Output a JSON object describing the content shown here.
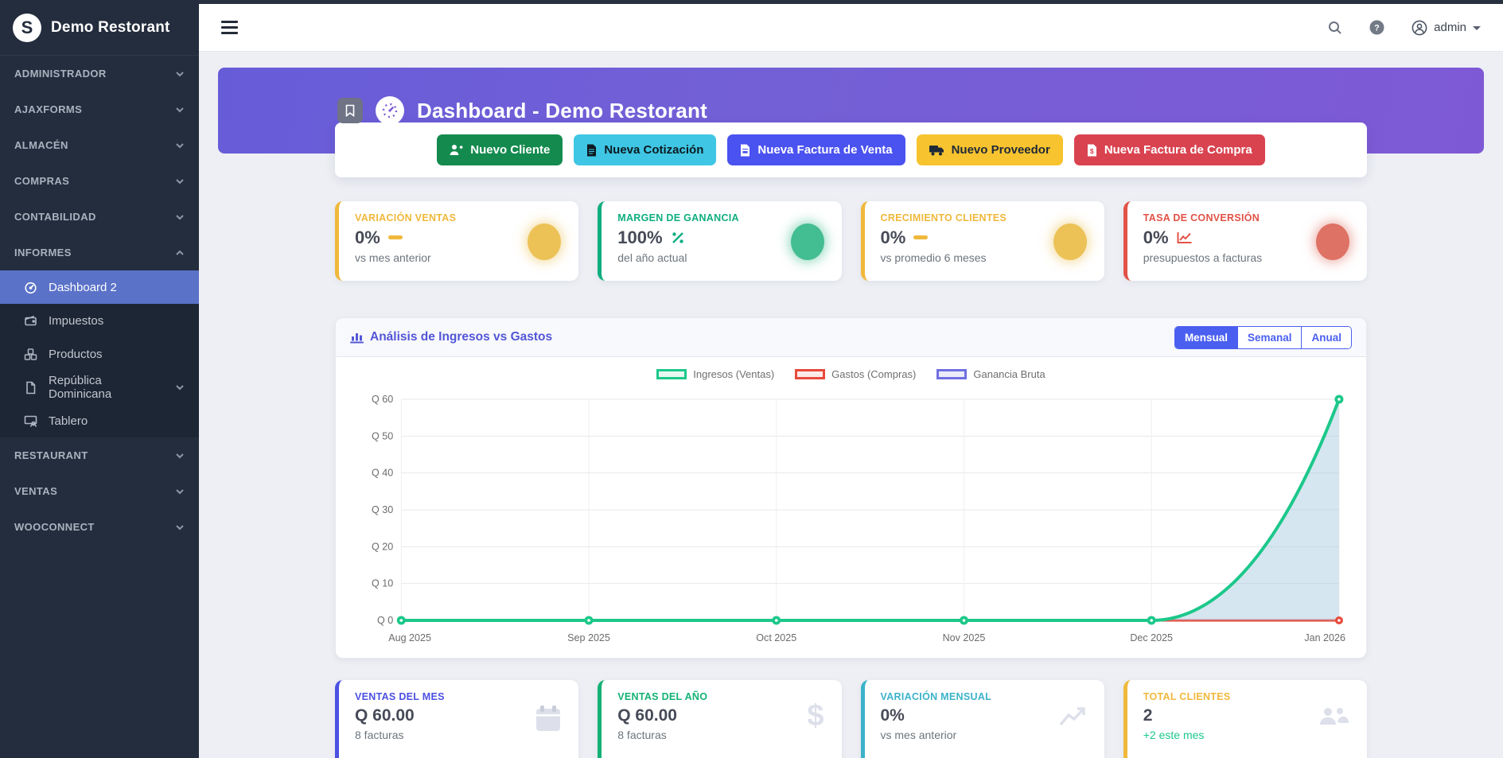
{
  "brand": {
    "title": "Demo Restorant",
    "logo_letter": "S"
  },
  "navbar": {
    "username": "admin"
  },
  "sidebar": {
    "sections": [
      {
        "label": "ADMINISTRADOR"
      },
      {
        "label": "AJAXFORMS"
      },
      {
        "label": "ALMACÉN"
      },
      {
        "label": "COMPRAS"
      },
      {
        "label": "CONTABILIDAD"
      },
      {
        "label": "INFORMES",
        "expanded": true
      },
      {
        "label": "RESTAURANT"
      },
      {
        "label": "VENTAS"
      },
      {
        "label": "WOOCONNECT"
      }
    ],
    "informes_items": [
      {
        "label": "Dashboard 2",
        "icon": "tachometer-icon",
        "active": true
      },
      {
        "label": "Impuestos",
        "icon": "wallet-icon"
      },
      {
        "label": "Productos",
        "icon": "cubes-icon"
      },
      {
        "label": "República Dominicana",
        "icon": "file-icon",
        "has_children": true
      },
      {
        "label": "Tablero",
        "icon": "board-user-icon"
      }
    ]
  },
  "hero": {
    "title": "Dashboard - Demo Restorant"
  },
  "actions": [
    {
      "label": "Nuevo Cliente",
      "bg": "#148a4e",
      "fg": "#ffffff",
      "icon": "user-plus-icon"
    },
    {
      "label": "Nueva Cotización",
      "bg": "#3fc6e4",
      "fg": "#0c1a20",
      "icon": "file-icon"
    },
    {
      "label": "Nueva Factura de Venta",
      "bg": "#4a52ef",
      "fg": "#ffffff",
      "icon": "file-invoice-icon"
    },
    {
      "label": "Nuevo Proveedor",
      "bg": "#f7c32e",
      "fg": "#1f2937",
      "icon": "truck-icon"
    },
    {
      "label": "Nueva Factura de Compra",
      "bg": "#d94350",
      "fg": "#ffffff",
      "icon": "file-invoice-dollar-icon"
    }
  ],
  "stats": [
    {
      "label": "VARIACIÓN VENTAS",
      "value": "0%",
      "sub": "vs mes anterior",
      "color": "#f0b83b",
      "circle": "#ecc257",
      "icon": "minus-icon"
    },
    {
      "label": "MARGEN DE GANANCIA",
      "value": "100%",
      "sub": "del año actual",
      "color": "#0fae7f",
      "circle": "#43bd92",
      "icon": "percent-icon"
    },
    {
      "label": "CRECIMIENTO CLIENTES",
      "value": "0%",
      "sub": "vs promedio 6 meses",
      "color": "#f0b83b",
      "circle": "#ecc257",
      "icon": "minus-icon"
    },
    {
      "label": "TASA DE CONVERSIÓN",
      "value": "0%",
      "sub": "presupuestos a facturas",
      "color": "#e25247",
      "circle": "#de7264",
      "icon": "chart-line-icon"
    }
  ],
  "chart": {
    "title": "Análisis de Ingresos vs Gastos",
    "tabs": [
      "Mensual",
      "Semanal",
      "Anual"
    ],
    "active_tab": "Mensual"
  },
  "chart_data": {
    "type": "line",
    "title": "Análisis de Ingresos vs Gastos",
    "x": [
      "Aug 2025",
      "Sep 2025",
      "Oct 2025",
      "Nov 2025",
      "Dec 2025",
      "Jan 2026"
    ],
    "series": [
      {
        "name": "Ingresos (Ventas)",
        "color": "#1cc88a",
        "swatch_fill": "#e6f8f1",
        "area_fill": "rgba(163,199,221,0.45)",
        "values": [
          0,
          0,
          0,
          0,
          0,
          60
        ]
      },
      {
        "name": "Gastos (Compras)",
        "color": "#e74a3b",
        "swatch_fill": "#fceae8",
        "area_fill": "none",
        "values": [
          0,
          0,
          0,
          0,
          0,
          0
        ]
      },
      {
        "name": "Ganancia Bruta",
        "color": "#6f6fe2",
        "swatch_fill": "#ebebfa",
        "area_fill": "none",
        "values": [
          0,
          0,
          0,
          0,
          0,
          60
        ]
      }
    ],
    "ylim": [
      0,
      60
    ],
    "ytick_step": 10,
    "currency_prefix": "Q",
    "grid": true,
    "legend_position": "top"
  },
  "kpis": [
    {
      "label": "VENTAS DEL MES",
      "value": "Q 60.00",
      "sub": "8 facturas",
      "color": "#4b50e2",
      "sub_color": "#6c757d",
      "icon": "calendar-icon"
    },
    {
      "label": "VENTAS DEL AÑO",
      "value": "Q 60.00",
      "sub": "8 facturas",
      "color": "#13b176",
      "sub_color": "#6c757d",
      "icon": "dollar-icon"
    },
    {
      "label": "VARIACIÓN MENSUAL",
      "value": "0%",
      "sub": "vs mes anterior",
      "color": "#3ab3c9",
      "sub_color": "#6c757d",
      "icon": "chart-line-icon"
    },
    {
      "label": "TOTAL CLIENTES",
      "value": "2",
      "sub": "+2 este mes",
      "color": "#f0b83b",
      "sub_color": "#1cc88a",
      "icon": "users-icon"
    }
  ],
  "icons": {
    "search": "magnifier",
    "help": "question-circle",
    "user": "person-circle",
    "bookmark": "bookmark-outline",
    "dashboard_badge": "tachometer-gauge"
  }
}
